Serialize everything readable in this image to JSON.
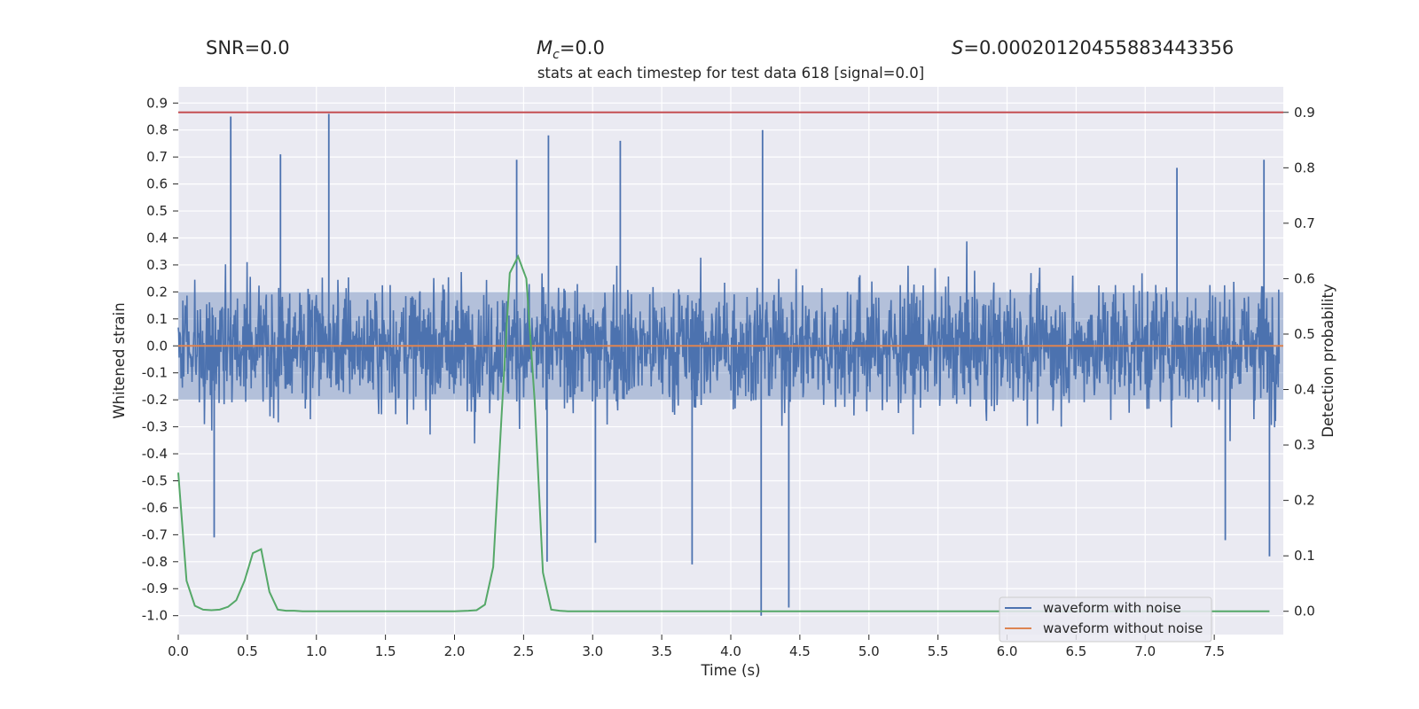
{
  "header": {
    "snr": "SNR=0.0",
    "mc": "=0.0",
    "mc_symbol": "M",
    "mc_sub": "c",
    "s": "=0.00020120455883443356",
    "s_symbol": "S"
  },
  "chart_data": {
    "type": "line",
    "title": "stats at each timestep for test data 618 [signal=0.0]",
    "xlabel": "Time (s)",
    "ylabel_left": "Whitened strain",
    "ylabel_right": "Detection probability",
    "xlim": [
      0.0,
      8.0
    ],
    "ylim_left": [
      -1.07,
      0.96
    ],
    "ylim_right": [
      -0.042,
      0.946
    ],
    "x_ticks": [
      "0.0",
      "0.5",
      "1.0",
      "1.5",
      "2.0",
      "2.5",
      "3.0",
      "3.5",
      "4.0",
      "4.5",
      "5.0",
      "5.5",
      "6.0",
      "6.5",
      "7.0",
      "7.5"
    ],
    "y_ticks_left": [
      "0.9",
      "0.8",
      "0.7",
      "0.6",
      "0.5",
      "0.4",
      "0.3",
      "0.2",
      "0.1",
      "0.0",
      "-0.1",
      "-0.2",
      "-0.3",
      "-0.4",
      "-0.5",
      "-0.6",
      "-0.7",
      "-0.8",
      "-0.9",
      "-1.0"
    ],
    "y_ticks_right": [
      "0.9",
      "0.8",
      "0.7",
      "0.6",
      "0.5",
      "0.4",
      "0.3",
      "0.2",
      "0.1",
      "0.0"
    ],
    "threshold_right": 0.9,
    "colors": {
      "noise": "#4c72b0",
      "clean": "#dd8452",
      "probability": "#55a868",
      "threshold": "#c44e52",
      "plot_bg": "#eaeaf2",
      "grid": "#ffffff"
    },
    "legend": {
      "placement": "lower right",
      "entries": [
        {
          "label": "waveform with noise",
          "color": "#4c72b0"
        },
        {
          "label": "waveform without noise",
          "color": "#dd8452"
        }
      ]
    },
    "series": [
      {
        "name": "waveform with noise",
        "axis": "left",
        "note": "noise samples",
        "peaks": [
          {
            "x": 0.38,
            "y": 0.85
          },
          {
            "x": 1.09,
            "y": 0.86
          },
          {
            "x": 4.23,
            "y": 0.8
          },
          {
            "x": 2.45,
            "y": 0.69
          },
          {
            "x": 7.23,
            "y": 0.66
          },
          {
            "x": 7.86,
            "y": 0.69
          },
          {
            "x": 0.74,
            "y": 0.71
          },
          {
            "x": 2.68,
            "y": 0.78
          },
          {
            "x": 3.2,
            "y": 0.76
          }
        ],
        "troughs": [
          {
            "x": 4.22,
            "y": -1.0
          },
          {
            "x": 4.42,
            "y": -0.97
          },
          {
            "x": 3.72,
            "y": -0.81
          },
          {
            "x": 2.67,
            "y": -0.8
          },
          {
            "x": 3.02,
            "y": -0.73
          },
          {
            "x": 7.9,
            "y": -0.78
          },
          {
            "x": 0.26,
            "y": -0.71
          },
          {
            "x": 7.58,
            "y": -0.72
          }
        ]
      },
      {
        "name": "waveform without noise",
        "axis": "left",
        "x": [
          0.0,
          8.0
        ],
        "y": [
          0.0,
          0.0
        ]
      },
      {
        "name": "",
        "axis": "right",
        "x": [
          0.0,
          0.06,
          0.12,
          0.18,
          0.24,
          0.3,
          0.36,
          0.42,
          0.48,
          0.54,
          0.6,
          0.66,
          0.72,
          0.78,
          0.84,
          0.9,
          1.0,
          1.5,
          2.0,
          2.1,
          2.16,
          2.22,
          2.28,
          2.34,
          2.4,
          2.46,
          2.52,
          2.58,
          2.64,
          2.7,
          2.76,
          2.82,
          3.0,
          4.0,
          5.0,
          6.0,
          7.0,
          7.9
        ],
        "y": [
          0.25,
          0.055,
          0.01,
          0.003,
          0.002,
          0.003,
          0.008,
          0.02,
          0.055,
          0.105,
          0.112,
          0.035,
          0.003,
          0.001,
          0.001,
          0.0,
          0.0,
          0.0,
          0.0,
          0.001,
          0.002,
          0.012,
          0.08,
          0.35,
          0.61,
          0.64,
          0.6,
          0.38,
          0.07,
          0.003,
          0.001,
          0.0,
          0.0,
          0.0,
          0.0,
          0.0,
          0.0,
          0.0
        ]
      }
    ]
  }
}
